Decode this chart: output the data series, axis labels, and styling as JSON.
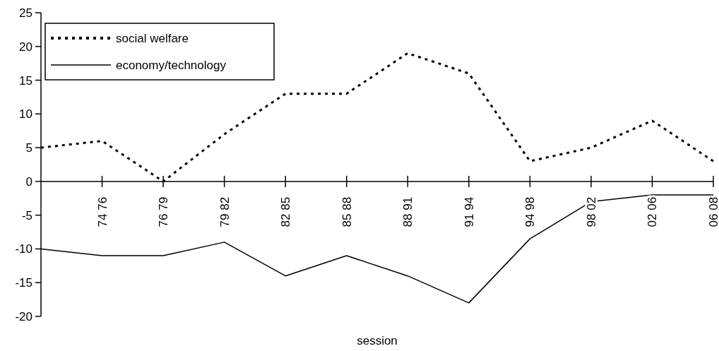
{
  "chart_data": {
    "type": "line",
    "xlabel": "session",
    "categories": [
      null,
      "74 76",
      "76 79",
      "79 82",
      "82 85",
      "85 88",
      "88 91",
      "91 94",
      "94 98",
      "98 02",
      "02 06",
      "06 08"
    ],
    "series": [
      {
        "name": "social welfare",
        "color": "#000000",
        "line_style": "dotted",
        "values": [
          5,
          6,
          0,
          7,
          13,
          13,
          19,
          16,
          3,
          5,
          9,
          3
        ]
      },
      {
        "name": "economy/technology",
        "color": "#000000",
        "line_style": "solid",
        "values": [
          -10,
          -11,
          -11,
          -9,
          -14,
          -11,
          -14,
          -18,
          -8.5,
          -3,
          -2,
          -2
        ]
      }
    ],
    "ylim": [
      -20,
      25
    ],
    "yticks": [
      -20,
      -15,
      -10,
      -5,
      0,
      5,
      10,
      15,
      20,
      25
    ],
    "grid": false,
    "legend": "top left",
    "marker": "none"
  }
}
